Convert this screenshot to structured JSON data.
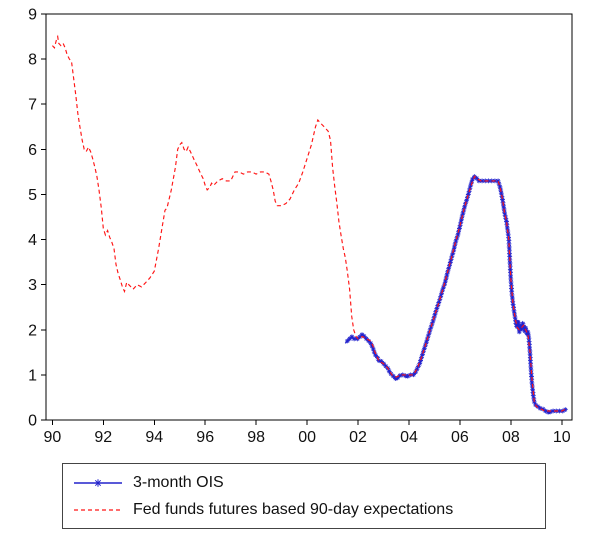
{
  "figure": {
    "background": "#ffffff",
    "axis_color": "#000000"
  },
  "chart_data": {
    "type": "line",
    "title": "",
    "xlabel": "",
    "ylabel": "",
    "grid": false,
    "legend_position": "bottom-left",
    "x_range": [
      1989.75,
      2010.4
    ],
    "y_range": [
      0,
      9
    ],
    "y_ticks": [
      0,
      1,
      2,
      3,
      4,
      5,
      6,
      7,
      8,
      9
    ],
    "x_ticks": [
      {
        "v": 1990,
        "label": "90"
      },
      {
        "v": 1992,
        "label": "92"
      },
      {
        "v": 1994,
        "label": "94"
      },
      {
        "v": 1996,
        "label": "96"
      },
      {
        "v": 1998,
        "label": "98"
      },
      {
        "v": 2000,
        "label": "00"
      },
      {
        "v": 2002,
        "label": "02"
      },
      {
        "v": 2004,
        "label": "04"
      },
      {
        "v": 2006,
        "label": "06"
      },
      {
        "v": 2008,
        "label": "08"
      },
      {
        "v": 2010,
        "label": "10"
      }
    ],
    "series": [
      {
        "name": "3-month OIS",
        "color": "#2222cc",
        "style": "solid-with-star-markers",
        "points": [
          [
            2001.5,
            1.7
          ],
          [
            2001.58,
            1.75
          ],
          [
            2001.67,
            1.8
          ],
          [
            2001.75,
            1.85
          ],
          [
            2001.83,
            1.8
          ],
          [
            2001.92,
            1.8
          ],
          [
            2002.0,
            1.8
          ],
          [
            2002.08,
            1.85
          ],
          [
            2002.17,
            1.9
          ],
          [
            2002.25,
            1.85
          ],
          [
            2002.33,
            1.8
          ],
          [
            2002.42,
            1.75
          ],
          [
            2002.5,
            1.7
          ],
          [
            2002.58,
            1.6
          ],
          [
            2002.67,
            1.45
          ],
          [
            2002.75,
            1.4
          ],
          [
            2002.83,
            1.3
          ],
          [
            2002.92,
            1.3
          ],
          [
            2003.0,
            1.25
          ],
          [
            2003.08,
            1.2
          ],
          [
            2003.17,
            1.15
          ],
          [
            2003.25,
            1.05
          ],
          [
            2003.33,
            1.0
          ],
          [
            2003.42,
            0.95
          ],
          [
            2003.5,
            0.9
          ],
          [
            2003.58,
            0.95
          ],
          [
            2003.67,
            1.0
          ],
          [
            2003.83,
            1.0
          ],
          [
            2003.92,
            0.95
          ],
          [
            2004.0,
            1.0
          ],
          [
            2004.08,
            1.0
          ],
          [
            2004.17,
            1.0
          ],
          [
            2004.25,
            1.05
          ],
          [
            2004.33,
            1.15
          ],
          [
            2004.42,
            1.25
          ],
          [
            2004.5,
            1.4
          ],
          [
            2004.58,
            1.55
          ],
          [
            2004.67,
            1.7
          ],
          [
            2004.75,
            1.85
          ],
          [
            2004.83,
            2.0
          ],
          [
            2004.92,
            2.15
          ],
          [
            2005.0,
            2.3
          ],
          [
            2005.08,
            2.45
          ],
          [
            2005.17,
            2.6
          ],
          [
            2005.25,
            2.75
          ],
          [
            2005.33,
            2.9
          ],
          [
            2005.42,
            3.05
          ],
          [
            2005.5,
            3.25
          ],
          [
            2005.58,
            3.4
          ],
          [
            2005.67,
            3.6
          ],
          [
            2005.75,
            3.75
          ],
          [
            2005.83,
            3.95
          ],
          [
            2005.92,
            4.1
          ],
          [
            2006.0,
            4.3
          ],
          [
            2006.08,
            4.5
          ],
          [
            2006.17,
            4.7
          ],
          [
            2006.25,
            4.85
          ],
          [
            2006.33,
            5.0
          ],
          [
            2006.42,
            5.2
          ],
          [
            2006.5,
            5.35
          ],
          [
            2006.58,
            5.4
          ],
          [
            2006.67,
            5.35
          ],
          [
            2006.75,
            5.3
          ],
          [
            2006.83,
            5.3
          ],
          [
            2006.92,
            5.3
          ],
          [
            2007.0,
            5.3
          ],
          [
            2007.17,
            5.3
          ],
          [
            2007.33,
            5.3
          ],
          [
            2007.5,
            5.3
          ],
          [
            2007.58,
            5.15
          ],
          [
            2007.67,
            4.9
          ],
          [
            2007.75,
            4.6
          ],
          [
            2007.83,
            4.4
          ],
          [
            2007.92,
            4.0
          ],
          [
            2008.0,
            3.1
          ],
          [
            2008.04,
            2.8
          ],
          [
            2008.08,
            2.6
          ],
          [
            2008.13,
            2.4
          ],
          [
            2008.17,
            2.25
          ],
          [
            2008.21,
            2.1
          ],
          [
            2008.25,
            2.05
          ],
          [
            2008.29,
            2.2
          ],
          [
            2008.33,
            1.95
          ],
          [
            2008.38,
            2.1
          ],
          [
            2008.42,
            2.0
          ],
          [
            2008.46,
            2.15
          ],
          [
            2008.5,
            2.1
          ],
          [
            2008.54,
            1.95
          ],
          [
            2008.58,
            2.05
          ],
          [
            2008.63,
            1.9
          ],
          [
            2008.67,
            1.95
          ],
          [
            2008.71,
            1.8
          ],
          [
            2008.75,
            1.5
          ],
          [
            2008.79,
            1.1
          ],
          [
            2008.83,
            0.8
          ],
          [
            2008.88,
            0.55
          ],
          [
            2008.92,
            0.4
          ],
          [
            2009.0,
            0.3
          ],
          [
            2009.08,
            0.3
          ],
          [
            2009.17,
            0.25
          ],
          [
            2009.25,
            0.25
          ],
          [
            2009.33,
            0.2
          ],
          [
            2009.42,
            0.2
          ],
          [
            2009.5,
            0.15
          ],
          [
            2009.58,
            0.2
          ],
          [
            2009.67,
            0.2
          ],
          [
            2009.75,
            0.2
          ],
          [
            2009.83,
            0.2
          ],
          [
            2009.92,
            0.2
          ],
          [
            2010.0,
            0.2
          ],
          [
            2010.08,
            0.2
          ],
          [
            2010.17,
            0.25
          ]
        ]
      },
      {
        "name": "Fed funds futures based 90-day expectations",
        "color": "#ff1515",
        "style": "dashed",
        "points": [
          [
            1990.0,
            8.3
          ],
          [
            1990.08,
            8.25
          ],
          [
            1990.17,
            8.45
          ],
          [
            1990.21,
            8.5
          ],
          [
            1990.25,
            8.35
          ],
          [
            1990.33,
            8.3
          ],
          [
            1990.42,
            8.35
          ],
          [
            1990.5,
            8.25
          ],
          [
            1990.58,
            8.1
          ],
          [
            1990.67,
            8.0
          ],
          [
            1990.75,
            7.95
          ],
          [
            1990.83,
            7.6
          ],
          [
            1990.92,
            7.2
          ],
          [
            1991.0,
            6.8
          ],
          [
            1991.08,
            6.5
          ],
          [
            1991.17,
            6.2
          ],
          [
            1991.25,
            6.0
          ],
          [
            1991.33,
            5.95
          ],
          [
            1991.42,
            6.05
          ],
          [
            1991.5,
            5.95
          ],
          [
            1991.58,
            5.8
          ],
          [
            1991.67,
            5.6
          ],
          [
            1991.75,
            5.4
          ],
          [
            1991.83,
            5.1
          ],
          [
            1991.92,
            4.7
          ],
          [
            1992.0,
            4.25
          ],
          [
            1992.08,
            4.1
          ],
          [
            1992.17,
            4.2
          ],
          [
            1992.25,
            4.05
          ],
          [
            1992.33,
            3.95
          ],
          [
            1992.42,
            3.8
          ],
          [
            1992.5,
            3.45
          ],
          [
            1992.58,
            3.25
          ],
          [
            1992.67,
            3.1
          ],
          [
            1992.75,
            2.95
          ],
          [
            1992.83,
            2.85
          ],
          [
            1992.92,
            3.05
          ],
          [
            1993.0,
            3.0
          ],
          [
            1993.17,
            2.9
          ],
          [
            1993.33,
            3.0
          ],
          [
            1993.5,
            2.95
          ],
          [
            1993.67,
            3.05
          ],
          [
            1993.83,
            3.15
          ],
          [
            1994.0,
            3.3
          ],
          [
            1994.17,
            3.8
          ],
          [
            1994.33,
            4.35
          ],
          [
            1994.42,
            4.65
          ],
          [
            1994.5,
            4.7
          ],
          [
            1994.67,
            5.1
          ],
          [
            1994.83,
            5.6
          ],
          [
            1994.92,
            6.0
          ],
          [
            1995.0,
            6.1
          ],
          [
            1995.08,
            6.15
          ],
          [
            1995.17,
            6.0
          ],
          [
            1995.25,
            5.95
          ],
          [
            1995.33,
            6.05
          ],
          [
            1995.42,
            5.95
          ],
          [
            1995.5,
            5.85
          ],
          [
            1995.58,
            5.75
          ],
          [
            1995.67,
            5.65
          ],
          [
            1995.75,
            5.55
          ],
          [
            1995.83,
            5.45
          ],
          [
            1995.92,
            5.35
          ],
          [
            1996.0,
            5.2
          ],
          [
            1996.08,
            5.1
          ],
          [
            1996.17,
            5.15
          ],
          [
            1996.25,
            5.25
          ],
          [
            1996.33,
            5.2
          ],
          [
            1996.5,
            5.3
          ],
          [
            1996.67,
            5.35
          ],
          [
            1996.83,
            5.3
          ],
          [
            1997.0,
            5.3
          ],
          [
            1997.17,
            5.5
          ],
          [
            1997.33,
            5.5
          ],
          [
            1997.5,
            5.45
          ],
          [
            1997.67,
            5.5
          ],
          [
            1997.83,
            5.5
          ],
          [
            1998.0,
            5.45
          ],
          [
            1998.17,
            5.5
          ],
          [
            1998.33,
            5.5
          ],
          [
            1998.5,
            5.45
          ],
          [
            1998.58,
            5.3
          ],
          [
            1998.67,
            5.1
          ],
          [
            1998.75,
            4.85
          ],
          [
            1998.83,
            4.75
          ],
          [
            1999.0,
            4.75
          ],
          [
            1999.17,
            4.8
          ],
          [
            1999.33,
            4.9
          ],
          [
            1999.5,
            5.1
          ],
          [
            1999.67,
            5.25
          ],
          [
            1999.83,
            5.5
          ],
          [
            2000.0,
            5.8
          ],
          [
            2000.17,
            6.1
          ],
          [
            2000.33,
            6.5
          ],
          [
            2000.42,
            6.65
          ],
          [
            2000.5,
            6.6
          ],
          [
            2000.58,
            6.55
          ],
          [
            2000.67,
            6.5
          ],
          [
            2000.83,
            6.4
          ],
          [
            2000.92,
            6.2
          ],
          [
            2001.0,
            5.6
          ],
          [
            2001.08,
            5.2
          ],
          [
            2001.17,
            4.8
          ],
          [
            2001.25,
            4.4
          ],
          [
            2001.33,
            4.1
          ],
          [
            2001.42,
            3.8
          ],
          [
            2001.5,
            3.6
          ],
          [
            2001.58,
            3.3
          ],
          [
            2001.67,
            2.9
          ],
          [
            2001.75,
            2.3
          ],
          [
            2001.83,
            2.0
          ],
          [
            2001.92,
            1.85
          ],
          [
            2002.0,
            1.8
          ],
          [
            2002.17,
            1.85
          ],
          [
            2002.33,
            1.8
          ],
          [
            2002.5,
            1.75
          ],
          [
            2002.58,
            1.65
          ],
          [
            2002.67,
            1.5
          ],
          [
            2002.83,
            1.3
          ],
          [
            2003.0,
            1.25
          ],
          [
            2003.17,
            1.15
          ],
          [
            2003.33,
            1.0
          ],
          [
            2003.5,
            0.95
          ],
          [
            2003.67,
            1.0
          ],
          [
            2003.83,
            1.0
          ],
          [
            2004.0,
            1.0
          ],
          [
            2004.17,
            1.0
          ],
          [
            2004.33,
            1.15
          ],
          [
            2004.5,
            1.4
          ],
          [
            2004.67,
            1.7
          ],
          [
            2004.83,
            2.0
          ],
          [
            2005.0,
            2.3
          ],
          [
            2005.17,
            2.6
          ],
          [
            2005.33,
            2.9
          ],
          [
            2005.5,
            3.25
          ],
          [
            2005.67,
            3.6
          ],
          [
            2005.83,
            3.95
          ],
          [
            2006.0,
            4.3
          ],
          [
            2006.17,
            4.7
          ],
          [
            2006.33,
            5.0
          ],
          [
            2006.5,
            5.3
          ],
          [
            2006.58,
            5.4
          ],
          [
            2006.67,
            5.35
          ],
          [
            2006.83,
            5.3
          ],
          [
            2007.0,
            5.3
          ],
          [
            2007.17,
            5.3
          ],
          [
            2007.33,
            5.3
          ],
          [
            2007.5,
            5.3
          ],
          [
            2007.58,
            5.15
          ],
          [
            2007.67,
            4.9
          ],
          [
            2007.75,
            4.6
          ],
          [
            2007.83,
            4.4
          ],
          [
            2007.92,
            4.0
          ],
          [
            2008.0,
            3.1
          ],
          [
            2008.08,
            2.6
          ],
          [
            2008.17,
            2.25
          ],
          [
            2008.25,
            2.05
          ],
          [
            2008.33,
            2.0
          ],
          [
            2008.42,
            2.05
          ],
          [
            2008.5,
            2.1
          ],
          [
            2008.58,
            2.0
          ],
          [
            2008.67,
            1.9
          ],
          [
            2008.75,
            1.5
          ],
          [
            2008.83,
            0.9
          ],
          [
            2008.92,
            0.4
          ],
          [
            2009.0,
            0.3
          ],
          [
            2009.17,
            0.25
          ],
          [
            2009.33,
            0.2
          ],
          [
            2009.5,
            0.2
          ],
          [
            2009.67,
            0.2
          ],
          [
            2009.83,
            0.2
          ],
          [
            2010.0,
            0.2
          ],
          [
            2010.17,
            0.25
          ]
        ]
      }
    ]
  },
  "legend": {
    "items": [
      {
        "label": "3-month OIS"
      },
      {
        "label": "Fed funds futures based 90-day expectations"
      }
    ]
  }
}
